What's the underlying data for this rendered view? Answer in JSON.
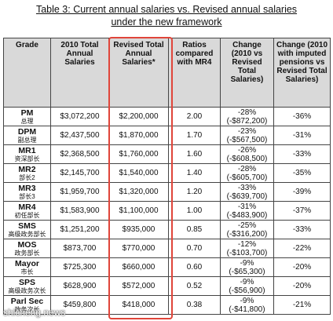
{
  "title": [
    "Table 3: Current annual salaries vs. Revised annual salaries",
    "under the new framework"
  ],
  "table": {
    "header": [
      "Grade",
      "2010 Total Annual Salaries",
      "Revised Total Annual Salaries*",
      "Ratios compared with MR4",
      "Change (2010 vs Revised Total Salaries)",
      "Change (2010 with imputed pensions vs Revised Total Salaries)"
    ],
    "rows": [
      {
        "grade": "PM",
        "grade_zh": "总理",
        "salary_2010": "$3,072,200",
        "revised": "$2,200,000",
        "ratio": "2.00",
        "change": "-28%",
        "change_amount": "(-$872,200)",
        "change_pension": "-36%"
      },
      {
        "grade": "DPM",
        "grade_zh": "副总理",
        "salary_2010": "$2,437,500",
        "revised": "$1,870,000",
        "ratio": "1.70",
        "change": "-23%",
        "change_amount": "(-$567,500)",
        "change_pension": "-31%"
      },
      {
        "grade": "MR1",
        "grade_zh": "资深部长",
        "salary_2010": "$2,368,500",
        "revised": "$1,760,000",
        "ratio": "1.60",
        "change": "-26%",
        "change_amount": "(-$608,500)",
        "change_pension": "-33%"
      },
      {
        "grade": "MR2",
        "grade_zh": "部长2",
        "salary_2010": "$2,145,700",
        "revised": "$1,540,000",
        "ratio": "1.40",
        "change": "-28%",
        "change_amount": "(-$605,700)",
        "change_pension": "-35%"
      },
      {
        "grade": "MR3",
        "grade_zh": "部长3",
        "salary_2010": "$1,959,700",
        "revised": "$1,320,000",
        "ratio": "1.20",
        "change": "-33%",
        "change_amount": "(-$639,700)",
        "change_pension": "-39%"
      },
      {
        "grade": "MR4",
        "grade_zh": "初任部长",
        "salary_2010": "$1,583,900",
        "revised": "$1,100,000",
        "ratio": "1.00",
        "change": "-31%",
        "change_amount": "(-$483,900)",
        "change_pension": "-37%"
      },
      {
        "grade": "SMS",
        "grade_zh": "高级政务部长",
        "salary_2010": "$1,251,200",
        "revised": "$935,000",
        "ratio": "0.85",
        "change": "-25%",
        "change_amount": "(-$316,200)",
        "change_pension": "-33%"
      },
      {
        "grade": "MOS",
        "grade_zh": "政务部长",
        "salary_2010": "$873,700",
        "revised": "$770,000",
        "ratio": "0.70",
        "change": "-12%",
        "change_amount": "(-$103,700)",
        "change_pension": "-22%"
      },
      {
        "grade": "Mayor",
        "grade_zh": "市长",
        "salary_2010": "$725,300",
        "revised": "$660,000",
        "ratio": "0.60",
        "change": "-9%",
        "change_amount": "(-$65,300)",
        "change_pension": "-20%"
      },
      {
        "grade": "SPS",
        "grade_zh": "高级政务次长",
        "salary_2010": "$628,900",
        "revised": "$572,000",
        "ratio": "0.52",
        "change": "-9%",
        "change_amount": "(-$56,900)",
        "change_pension": "-20%"
      },
      {
        "grade": "Parl Sec",
        "grade_zh": "政务次长",
        "salary_2010": "$459,800",
        "revised": "$418,000",
        "ratio": "0.38",
        "change": "-9%",
        "change_amount": "(-$41,800)",
        "change_pension": "-21%"
      }
    ]
  },
  "watermark": "shicheng.news"
}
